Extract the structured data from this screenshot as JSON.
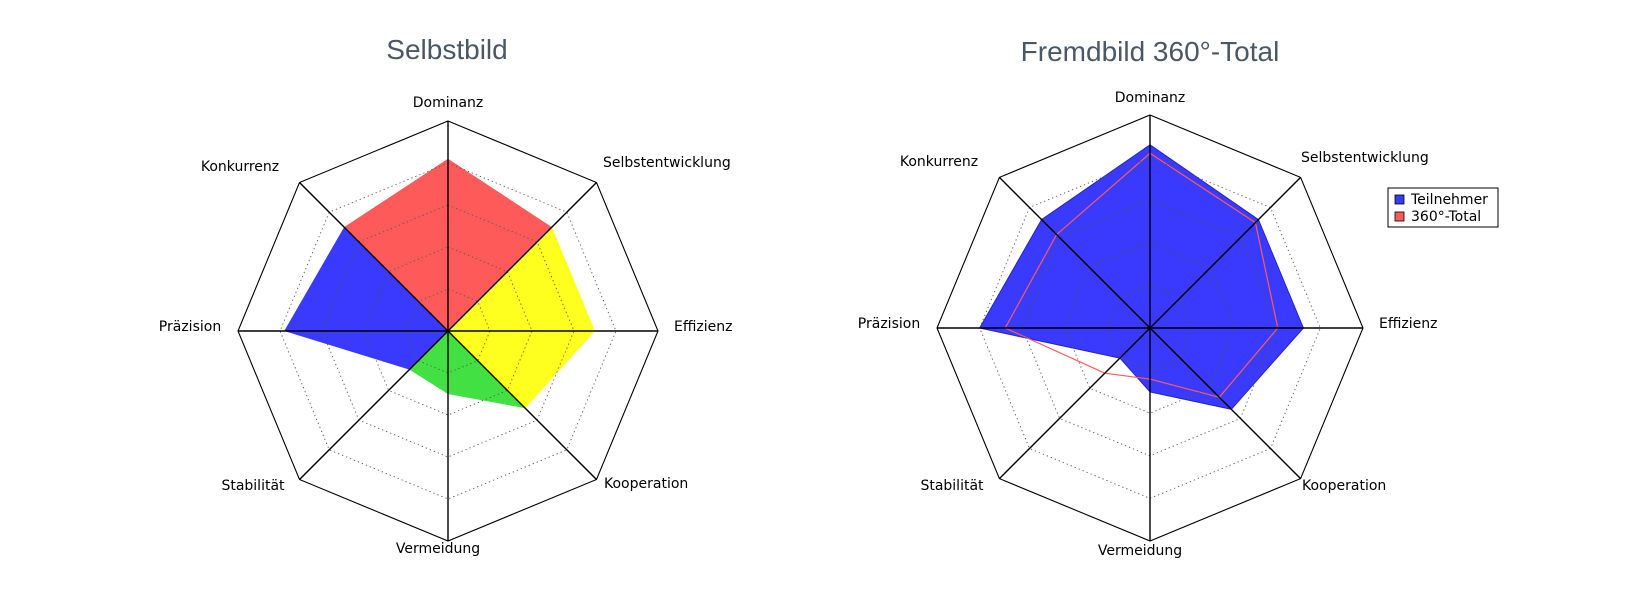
{
  "chart_data": [
    {
      "type": "radar",
      "title": "Selbstbild",
      "axes": [
        "Dominanz",
        "Selbstentwicklung",
        "Effizienz",
        "Kooperation",
        "Vermeidung",
        "Stabilität",
        "Präzision",
        "Konkurrenz"
      ],
      "rlim": [
        0,
        5
      ],
      "rings": [
        1,
        2,
        3,
        4
      ],
      "sectors": [
        {
          "color": "#fe5a5a",
          "points": [
            {
              "axis": "Konkurrenz",
              "value": 3.5
            },
            {
              "axis": "Dominanz",
              "value": 4.1
            },
            {
              "axis": "Selbstentwicklung",
              "value": 3.5
            }
          ]
        },
        {
          "color": "#ffff1f",
          "points": [
            {
              "axis": "Selbstentwicklung",
              "value": 3.5
            },
            {
              "axis": "Effizienz",
              "value": 3.5
            },
            {
              "axis": "Kooperation",
              "value": 2.6
            }
          ]
        },
        {
          "color": "#42e042",
          "points": [
            {
              "axis": "Kooperation",
              "value": 2.6
            },
            {
              "axis": "Vermeidung",
              "value": 1.5
            },
            {
              "axis": "Stabilität",
              "value": 1.3
            }
          ]
        },
        {
          "color": "#3a3aff",
          "points": [
            {
              "axis": "Stabilität",
              "value": 1.3
            },
            {
              "axis": "Präzision",
              "value": 3.9
            },
            {
              "axis": "Konkurrenz",
              "value": 3.5
            }
          ]
        }
      ]
    },
    {
      "type": "radar",
      "title": "Fremdbild 360°-Total",
      "axes": [
        "Dominanz",
        "Selbstentwicklung",
        "Effizienz",
        "Kooperation",
        "Vermeidung",
        "Stabilität",
        "Präzision",
        "Konkurrenz"
      ],
      "rlim": [
        0,
        5
      ],
      "rings": [
        1,
        2,
        3,
        4
      ],
      "legend": "right",
      "series": [
        {
          "name": "Teilnehmer",
          "color": "#3a3aff",
          "style": "filled",
          "values": [
            4.3,
            3.6,
            3.6,
            2.7,
            1.5,
            1.0,
            4.0,
            3.6
          ]
        },
        {
          "name": "360°-Total",
          "color": "#fe5a5a",
          "style": "line",
          "values": [
            4.1,
            3.5,
            3.0,
            2.3,
            1.2,
            1.5,
            3.4,
            3.1
          ]
        }
      ]
    }
  ]
}
